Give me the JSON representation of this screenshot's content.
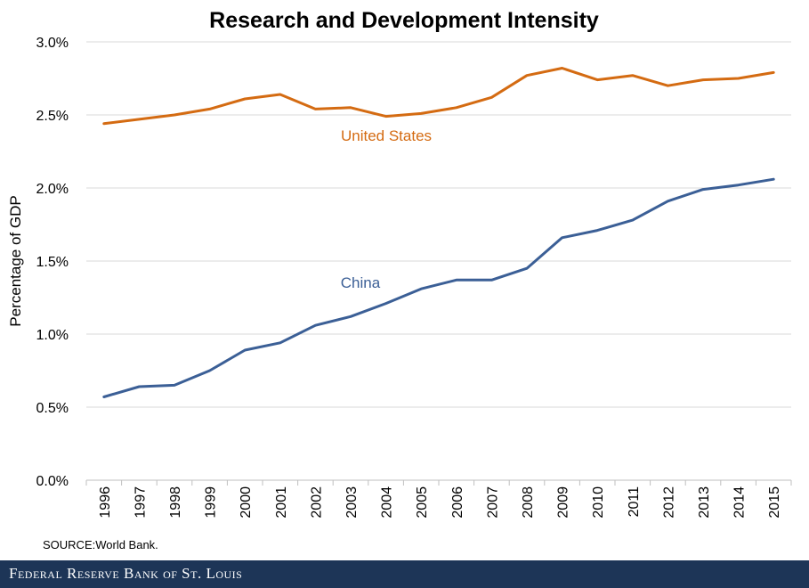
{
  "chart_data": {
    "type": "line",
    "title": "Research and Development Intensity",
    "xlabel": "",
    "ylabel": "Percentage of GDP",
    "categories": [
      "1996",
      "1997",
      "1998",
      "1999",
      "2000",
      "2001",
      "2002",
      "2003",
      "2004",
      "2005",
      "2006",
      "2007",
      "2008",
      "2009",
      "2010",
      "2011",
      "2012",
      "2013",
      "2014",
      "2015"
    ],
    "y_ticks": [
      "0.0%",
      "0.5%",
      "1.0%",
      "1.5%",
      "2.0%",
      "2.5%",
      "3.0%"
    ],
    "ylim": [
      0,
      3.0
    ],
    "series": [
      {
        "name": "United States",
        "color": "#d46b12",
        "values": [
          2.44,
          2.47,
          2.5,
          2.54,
          2.61,
          2.64,
          2.54,
          2.55,
          2.49,
          2.51,
          2.55,
          2.62,
          2.77,
          2.82,
          2.74,
          2.77,
          2.7,
          2.74,
          2.75,
          2.79
        ]
      },
      {
        "name": "China",
        "color": "#3b5f96",
        "values": [
          0.57,
          0.64,
          0.65,
          0.75,
          0.89,
          0.94,
          1.06,
          1.12,
          1.21,
          1.31,
          1.37,
          1.37,
          1.45,
          1.66,
          1.71,
          1.78,
          1.91,
          1.99,
          2.02,
          2.06
        ]
      }
    ]
  },
  "source_note": "SOURCE:World Bank.",
  "footer": {
    "brand": "Federal Reserve Bank of St. Louis"
  }
}
